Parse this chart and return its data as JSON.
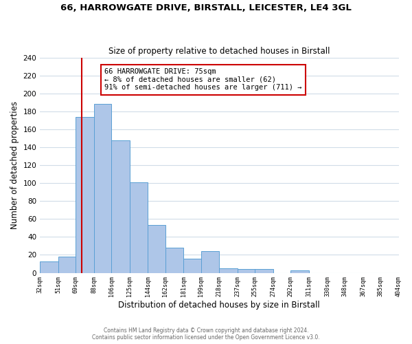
{
  "title_line1": "66, HARROWGATE DRIVE, BIRSTALL, LEICESTER, LE4 3GL",
  "title_line2": "Size of property relative to detached houses in Birstall",
  "xlabel": "Distribution of detached houses by size in Birstall",
  "ylabel": "Number of detached properties",
  "bar_left_edges": [
    32,
    51,
    69,
    88,
    106,
    125,
    144,
    162,
    181,
    199,
    218,
    237,
    255,
    274,
    292,
    311,
    330,
    348,
    367,
    385
  ],
  "bar_widths": [
    19,
    18,
    19,
    18,
    19,
    19,
    18,
    19,
    18,
    19,
    19,
    18,
    19,
    18,
    19,
    19,
    18,
    19,
    18,
    19
  ],
  "bar_heights": [
    13,
    18,
    174,
    188,
    148,
    101,
    53,
    28,
    16,
    24,
    5,
    4,
    4,
    0,
    3,
    0,
    0,
    0,
    0,
    0
  ],
  "bar_color": "#aec6e8",
  "bar_edgecolor": "#5a9fd4",
  "vline_x": 75,
  "vline_color": "#cc0000",
  "annotation_box_text": "66 HARROWGATE DRIVE: 75sqm\n← 8% of detached houses are smaller (62)\n91% of semi-detached houses are larger (711) →",
  "ylim": [
    0,
    240
  ],
  "xlim": [
    32,
    404
  ],
  "tick_labels": [
    "32sqm",
    "51sqm",
    "69sqm",
    "88sqm",
    "106sqm",
    "125sqm",
    "144sqm",
    "162sqm",
    "181sqm",
    "199sqm",
    "218sqm",
    "237sqm",
    "255sqm",
    "274sqm",
    "292sqm",
    "311sqm",
    "330sqm",
    "348sqm",
    "367sqm",
    "385sqm",
    "404sqm"
  ],
  "tick_positions": [
    32,
    51,
    69,
    88,
    106,
    125,
    144,
    162,
    181,
    199,
    218,
    237,
    255,
    274,
    292,
    311,
    330,
    348,
    367,
    385,
    404
  ],
  "yticks": [
    0,
    20,
    40,
    60,
    80,
    100,
    120,
    140,
    160,
    180,
    200,
    220,
    240
  ],
  "footer_line1": "Contains HM Land Registry data © Crown copyright and database right 2024.",
  "footer_line2": "Contains public sector information licensed under the Open Government Licence v3.0.",
  "bg_color": "#ffffff",
  "grid_color": "#d0dce8",
  "annotation_rect_color": "#cc0000",
  "annotation_rect_facecolor": "#ffffff"
}
